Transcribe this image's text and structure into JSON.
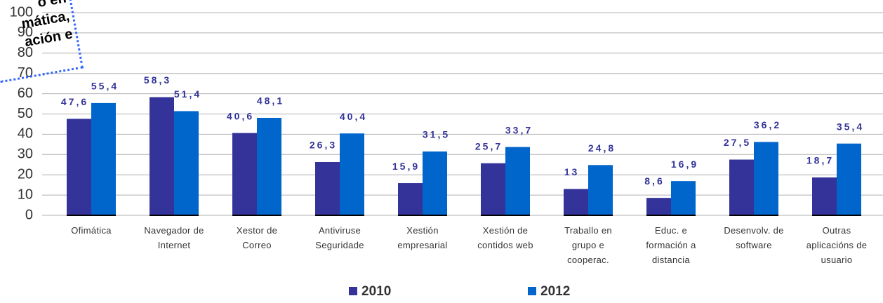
{
  "chart_data": {
    "type": "bar",
    "title_fragments": [
      "o en",
      "mática,",
      "ación e"
    ],
    "categories": [
      "Ofimática",
      "Navegador de\nInternet",
      "Xestor de\nCorreo",
      "Antiviruse\nSeguridade",
      "Xestión\nempresarial",
      "Xestión de\ncontidos web",
      "Traballo en\ngrupo e\ncooperac.",
      "Educ. e\nformación a\ndistancia",
      "Desenvolv. de\nsoftware",
      "Outras\naplicacións de\nusuario"
    ],
    "series": [
      {
        "name": "2010",
        "color": "#333399",
        "values": [
          47.6,
          58.3,
          40.6,
          26.3,
          15.9,
          25.7,
          13,
          8.6,
          27.5,
          18.7
        ],
        "value_labels": [
          "47,6",
          "58,3",
          "40,6",
          "26,3",
          "15,9",
          "25,7",
          "13",
          "8,6",
          "27,5",
          "18,7"
        ]
      },
      {
        "name": "2012",
        "color": "#0066cc",
        "values": [
          55.4,
          51.4,
          48.1,
          40.4,
          31.5,
          33.7,
          24.8,
          16.9,
          36.2,
          35.4
        ],
        "value_labels": [
          "55,4",
          "51,4",
          "48,1",
          "40,4",
          "31,5",
          "33,7",
          "24,8",
          "16,9",
          "36,2",
          "35,4"
        ]
      }
    ],
    "ylim": [
      0,
      100
    ],
    "yticks": [
      0,
      10,
      20,
      30,
      40,
      50,
      60,
      70,
      80,
      90,
      100
    ],
    "grid": true
  }
}
